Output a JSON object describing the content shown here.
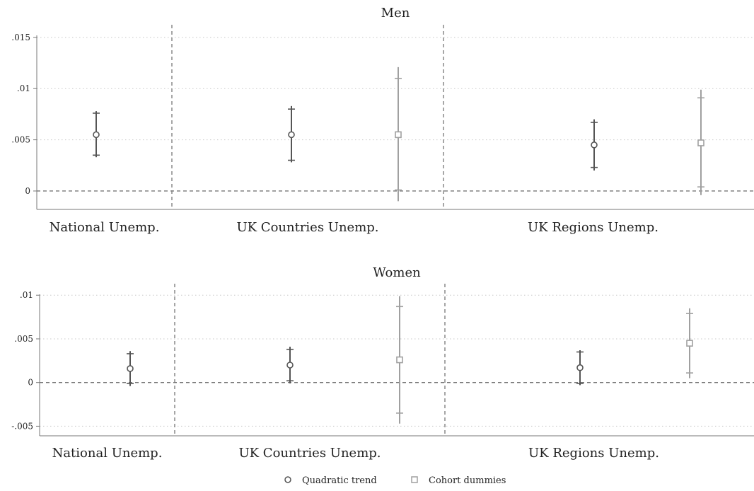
{
  "chart_data": [
    {
      "type": "scatter",
      "title": "Men",
      "categories": [
        "National Unemp.",
        "UK Countries Unemp.",
        "UK Regions Unemp."
      ],
      "ylim": [
        -0.0018,
        0.0152
      ],
      "yticks": [
        {
          "value": 0.015,
          "label": ".015"
        },
        {
          "value": 0.01,
          "label": ".01"
        },
        {
          "value": 0.005,
          "label": ".005"
        },
        {
          "value": 0,
          "label": "0"
        }
      ],
      "grid": true,
      "zero_line": true,
      "series": [
        {
          "name": "Quadratic trend",
          "marker": "circle",
          "color": "#555555",
          "points": [
            {
              "category": "National Unemp.",
              "value": 0.0055,
              "ci90": [
                0.0035,
                0.0076
              ],
              "ci95": [
                0.0033,
                0.0078
              ]
            },
            {
              "category": "UK Countries Unemp.",
              "value": 0.0055,
              "ci90": [
                0.003,
                0.008
              ],
              "ci95": [
                0.0028,
                0.0083
              ]
            },
            {
              "category": "UK Regions Unemp.",
              "value": 0.0045,
              "ci90": [
                0.0023,
                0.0067
              ],
              "ci95": [
                0.002,
                0.007
              ]
            }
          ]
        },
        {
          "name": "Cohort dummies",
          "marker": "square",
          "color": "#a0a0a0",
          "points": [
            {
              "category": "UK Countries Unemp.",
              "value": 0.0055,
              "ci90": [
                0.0001,
                0.011
              ],
              "ci95": [
                -0.001,
                0.0121
              ]
            },
            {
              "category": "UK Regions Unemp.",
              "value": 0.0047,
              "ci90": [
                0.0004,
                0.0091
              ],
              "ci95": [
                -0.0004,
                0.0099
              ]
            }
          ]
        }
      ]
    },
    {
      "type": "scatter",
      "title": "Women",
      "categories": [
        "National Unemp.",
        "UK Countries Unemp.",
        "UK Regions Unemp."
      ],
      "ylim": [
        -0.0061,
        0.0101
      ],
      "yticks": [
        {
          "value": 0.01,
          "label": ".01"
        },
        {
          "value": 0.005,
          "label": ".005"
        },
        {
          "value": 0,
          "label": "0"
        },
        {
          "value": -0.005,
          "label": "-.005"
        }
      ],
      "grid": true,
      "zero_line": true,
      "series": [
        {
          "name": "Quadratic trend",
          "marker": "circle",
          "color": "#555555",
          "points": [
            {
              "category": "National Unemp.",
              "value": 0.0016,
              "ci90": [
                -0.0001,
                0.0033
              ],
              "ci95": [
                -0.0004,
                0.0036
              ]
            },
            {
              "category": "UK Countries Unemp.",
              "value": 0.002,
              "ci90": [
                0.0002,
                0.0038
              ],
              "ci95": [
                -0.0001,
                0.0041
              ]
            },
            {
              "category": "UK Regions Unemp.",
              "value": 0.0017,
              "ci90": [
                -0.0001,
                0.0035
              ],
              "ci95": [
                -0.0003,
                0.0037
              ]
            }
          ]
        },
        {
          "name": "Cohort dummies",
          "marker": "square",
          "color": "#a0a0a0",
          "points": [
            {
              "category": "UK Countries Unemp.",
              "value": 0.0026,
              "ci90": [
                -0.0035,
                0.0087
              ],
              "ci95": [
                -0.0047,
                0.0099
              ]
            },
            {
              "category": "UK Regions Unemp.",
              "value": 0.0045,
              "ci90": [
                0.0011,
                0.0079
              ],
              "ci95": [
                0.0005,
                0.0085
              ]
            }
          ]
        }
      ]
    }
  ],
  "legend": {
    "placement": "bottom",
    "items": [
      {
        "label": "Quadratic trend",
        "marker": "circle",
        "color": "#555555"
      },
      {
        "label": "Cohort dummies",
        "marker": "square",
        "color": "#a0a0a0"
      }
    ]
  }
}
